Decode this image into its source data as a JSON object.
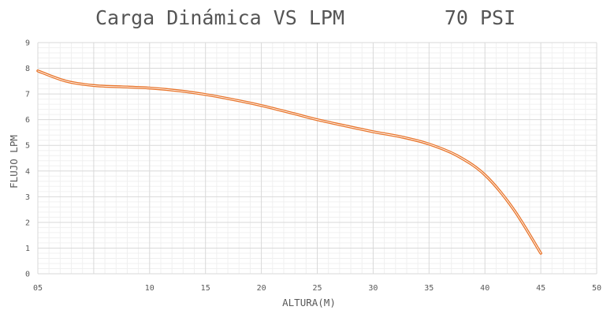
{
  "chart_data": {
    "type": "line",
    "title": "Carga Dinámica VS LPM",
    "subtitle": "70 PSI",
    "xlabel": "ALTURA(M)",
    "ylabel": "FLUJO  LPM",
    "xlim": [
      0,
      50
    ],
    "ylim": [
      0,
      9
    ],
    "x_ticks": [
      {
        "value": 0,
        "label": "05"
      },
      {
        "value": 10,
        "label": "10"
      },
      {
        "value": 15,
        "label": "15"
      },
      {
        "value": 20,
        "label": "20"
      },
      {
        "value": 25,
        "label": "25"
      },
      {
        "value": 30,
        "label": "30"
      },
      {
        "value": 35,
        "label": "35"
      },
      {
        "value": 40,
        "label": "40"
      },
      {
        "value": 45,
        "label": "45"
      },
      {
        "value": 50,
        "label": "50"
      }
    ],
    "x_major_gridlines": [
      0,
      5,
      10,
      15,
      20,
      25,
      30,
      35,
      40,
      45,
      50
    ],
    "y_ticks": [
      0,
      1,
      2,
      3,
      4,
      5,
      6,
      7,
      8,
      9
    ],
    "grid": true,
    "legend": "none",
    "colors": {
      "line": "#e8742a",
      "major_grid": "#d9d9d9",
      "minor_grid": "#f0f0f0"
    },
    "series": [
      {
        "x": [
          0,
          2.5,
          5,
          7.5,
          10,
          12.5,
          15,
          17.5,
          20,
          22.5,
          25,
          27.5,
          30,
          32.5,
          35,
          37.5,
          40,
          42.5,
          45
        ],
        "y": [
          7.9,
          7.5,
          7.33,
          7.28,
          7.23,
          7.13,
          6.98,
          6.78,
          6.55,
          6.28,
          6.0,
          5.76,
          5.53,
          5.33,
          5.05,
          4.6,
          3.85,
          2.55,
          0.8
        ]
      }
    ]
  }
}
